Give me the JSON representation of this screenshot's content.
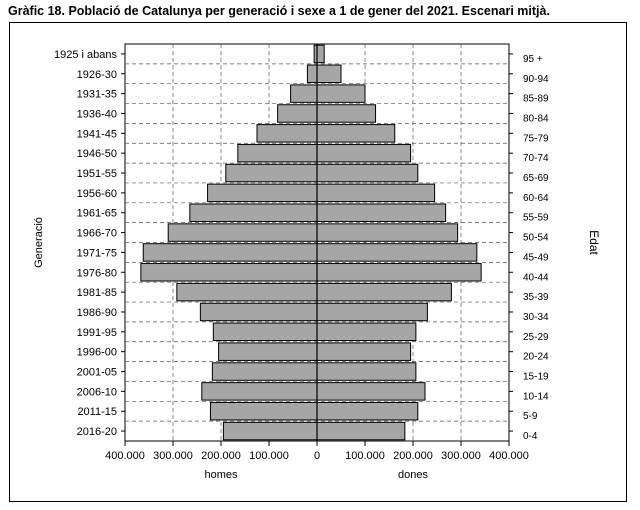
{
  "title": "Gràfic 18. Població de Catalunya per generació i sexe a 1  de gener del 2021. Escenari mitjà.",
  "chart_data": {
    "type": "bar",
    "orientation": "horizontal-population-pyramid",
    "generations": [
      "1925 i abans",
      "1926-30",
      "1931-35",
      "1936-40",
      "1941-45",
      "1946-50",
      "1951-55",
      "1956-60",
      "1961-65",
      "1966-70",
      "1971-75",
      "1976-80",
      "1981-85",
      "1986-90",
      "1991-95",
      "1996-00",
      "2001-05",
      "2006-10",
      "2011-15",
      "2016-20"
    ],
    "age_groups": [
      "95 +",
      "90-94",
      "85-89",
      "80-84",
      "75-79",
      "70-74",
      "65-69",
      "60-64",
      "55-59",
      "50-54",
      "45-49",
      "40-44",
      "35-39",
      "30-34",
      "25-29",
      "20-24",
      "15-19",
      "10-14",
      "5-9",
      "0-4"
    ],
    "series": [
      {
        "name": "homes",
        "side": "left",
        "values": [
          6000,
          20000,
          55000,
          82000,
          125000,
          165000,
          190000,
          228000,
          265000,
          310000,
          362000,
          367000,
          292000,
          243000,
          216000,
          205000,
          218000,
          240000,
          222000,
          195000
        ]
      },
      {
        "name": "dones",
        "side": "right",
        "values": [
          15000,
          50000,
          100000,
          122000,
          162000,
          195000,
          210000,
          245000,
          268000,
          293000,
          333000,
          342000,
          280000,
          230000,
          206000,
          195000,
          206000,
          225000,
          210000,
          183000
        ]
      }
    ],
    "xlabel_left": "homes",
    "xlabel_right": "dones",
    "ylabel_left": "Generació",
    "ylabel_right": "Edat",
    "xlim": [
      -400000,
      400000
    ],
    "x_ticks": [
      -400000,
      -300000,
      -200000,
      -100000,
      0,
      100000,
      200000,
      300000,
      400000
    ],
    "x_tick_labels": [
      "400.000",
      "300.000",
      "200.000",
      "100.000",
      "0",
      "100.000",
      "200.000",
      "300.000",
      "400.000"
    ],
    "grid": "dashed",
    "bar_color": "#a6a6a6",
    "edge_color": "#000000"
  }
}
